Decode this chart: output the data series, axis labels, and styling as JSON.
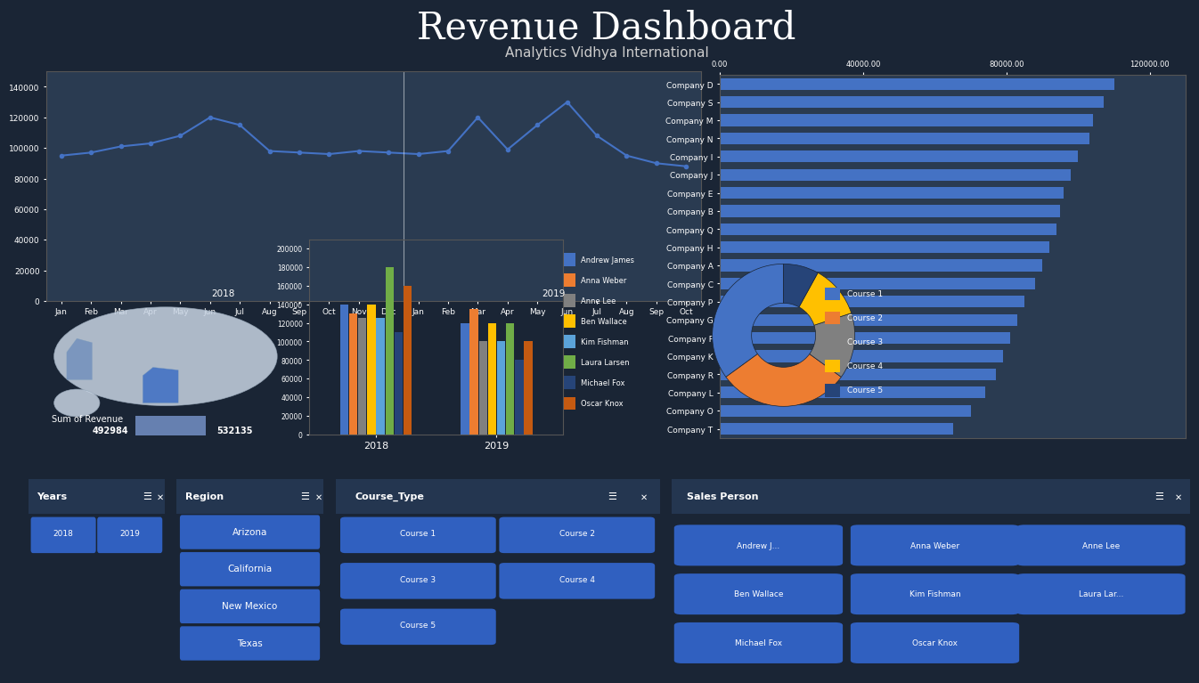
{
  "title": "Revenue Dashboard",
  "subtitle": "Analytics Vidhya International",
  "bg_color": "#1a2535",
  "line_chart": {
    "months_2018": [
      "Jan",
      "Feb",
      "Mar",
      "Apr",
      "May",
      "Jun",
      "Jul",
      "Aug",
      "Sep",
      "Oct",
      "Nov",
      "Dec"
    ],
    "months_2019": [
      "Jan",
      "Feb",
      "Mar",
      "Apr",
      "May",
      "Jun",
      "Jul",
      "Aug",
      "Sep",
      "Oct"
    ],
    "values_2018": [
      95000,
      97000,
      101000,
      103000,
      108000,
      120000,
      115000,
      98000,
      97000,
      96000,
      98000,
      97000
    ],
    "values_2019": [
      96000,
      98000,
      120000,
      99000,
      115000,
      130000,
      108000,
      95000,
      90000,
      88000
    ],
    "line_color": "#4472c4",
    "y_ticks": [
      0,
      20000,
      40000,
      60000,
      80000,
      100000,
      120000,
      140000
    ]
  },
  "bar_chart": {
    "salespeople": [
      "Andrew James",
      "Anna Weber",
      "Anne Lee",
      "Ben Wallace",
      "Kim Fishman",
      "Laura Larsen",
      "Michael Fox",
      "Oscar Knox"
    ],
    "colors": [
      "#4472c4",
      "#ed7d31",
      "#808080",
      "#ffc000",
      "#5ba3d9",
      "#70ad47",
      "#264478",
      "#c55a11"
    ],
    "values_2018": [
      140000,
      130000,
      125000,
      140000,
      125000,
      180000,
      110000,
      160000
    ],
    "values_2019": [
      120000,
      135000,
      100000,
      120000,
      100000,
      120000,
      80000,
      100000
    ],
    "y_ticks": [
      0,
      20000,
      40000,
      60000,
      80000,
      100000,
      120000,
      140000,
      160000,
      180000,
      200000
    ]
  },
  "donut_chart": {
    "labels": [
      "Course 1",
      "Course 2",
      "Course 3",
      "Course 4",
      "Course 5"
    ],
    "values": [
      35,
      30,
      15,
      12,
      8
    ],
    "colors": [
      "#4472c4",
      "#ed7d31",
      "#808080",
      "#ffc000",
      "#264478"
    ]
  },
  "horizontal_bars": {
    "companies": [
      "Company D",
      "Company S",
      "Company M",
      "Company N",
      "Company I",
      "Company J",
      "Company E",
      "Company B",
      "Company Q",
      "Company H",
      "Company A",
      "Company C",
      "Company P",
      "Company G",
      "Company F",
      "Company K",
      "Company R",
      "Company L",
      "Company O",
      "Company T"
    ],
    "values": [
      110000,
      107000,
      104000,
      103000,
      100000,
      98000,
      96000,
      95000,
      94000,
      92000,
      90000,
      88000,
      85000,
      83000,
      81000,
      79000,
      77000,
      74000,
      70000,
      65000
    ],
    "bar_color": "#4472c4",
    "x_ticks": [
      0,
      40000,
      80000,
      120000
    ]
  },
  "summary": {
    "label": "Sum of Revenue",
    "val1": "492984",
    "val2": "532135"
  },
  "filter_panels": {
    "years_title": "Years",
    "years": [
      "2018",
      "2019"
    ],
    "region_title": "Region",
    "regions": [
      "Arizona",
      "California",
      "New Mexico",
      "Texas"
    ],
    "course_title": "Course_Type",
    "courses": [
      "Course 1",
      "Course 2",
      "Course 3",
      "Course 4",
      "Course 5"
    ],
    "sales_title": "Sales Person",
    "salespeople": [
      "Andrew J...",
      "Anna Weber",
      "Anne Lee",
      "Ben Wallace",
      "Kim Fishman",
      "Laura Lar...",
      "Michael Fox",
      "Oscar Knox"
    ],
    "button_color": "#3060c0",
    "button_text_color": "#ffffff",
    "panel_bg": "#1a2535",
    "panel_border": "#4472c4",
    "title_bg": "#243650"
  }
}
